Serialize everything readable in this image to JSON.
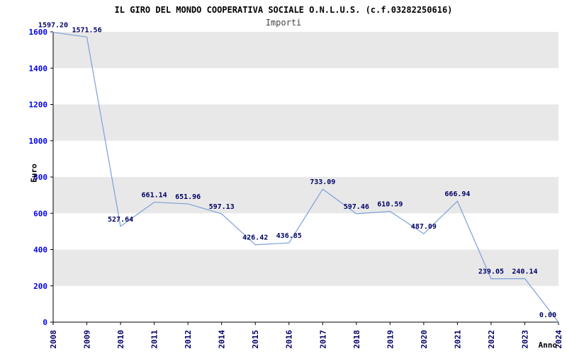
{
  "header": {
    "title": "IL GIRO DEL MONDO COOPERATIVA SOCIALE O.N.L.U.S. (c.f.03282250616)",
    "subtitle": "Importi"
  },
  "chart_data": {
    "type": "line",
    "title": "IL GIRO DEL MONDO COOPERATIVA SOCIALE O.N.L.U.S. (c.f.03282250616)",
    "subtitle": "Importi",
    "xlabel": "Anno",
    "ylabel": "Euro",
    "categories": [
      "2008",
      "2009",
      "2010",
      "2011",
      "2012",
      "2014",
      "2015",
      "2016",
      "2017",
      "2018",
      "2019",
      "2020",
      "2021",
      "2022",
      "2023",
      "2024"
    ],
    "values": [
      1597.2,
      1571.56,
      527.64,
      661.14,
      651.96,
      597.13,
      426.42,
      436.85,
      733.09,
      597.46,
      610.59,
      487.09,
      666.94,
      239.05,
      240.14,
      0.0
    ],
    "point_labels": [
      "1597.20",
      "1571.56",
      "527.64",
      "661.14",
      "651.96",
      "597.13",
      "426.42",
      "436.85",
      "733.09",
      "597.46",
      "610.59",
      "487.09",
      "666.94",
      "239.05",
      "240.14",
      "0.00"
    ],
    "ylim": [
      0,
      1600
    ],
    "yticks": [
      0,
      200,
      400,
      600,
      800,
      1000,
      1200,
      1400,
      1600
    ],
    "grid": "alternating-bands",
    "legend": "none",
    "colors": {
      "line": "#7aa0d6",
      "band": "#e8e8e8",
      "plot_background": "#ffffff",
      "y_tick_labels": "#0000ee",
      "x_tick_labels": "#000066",
      "point_labels": "#000066",
      "axis": "#000000"
    }
  }
}
